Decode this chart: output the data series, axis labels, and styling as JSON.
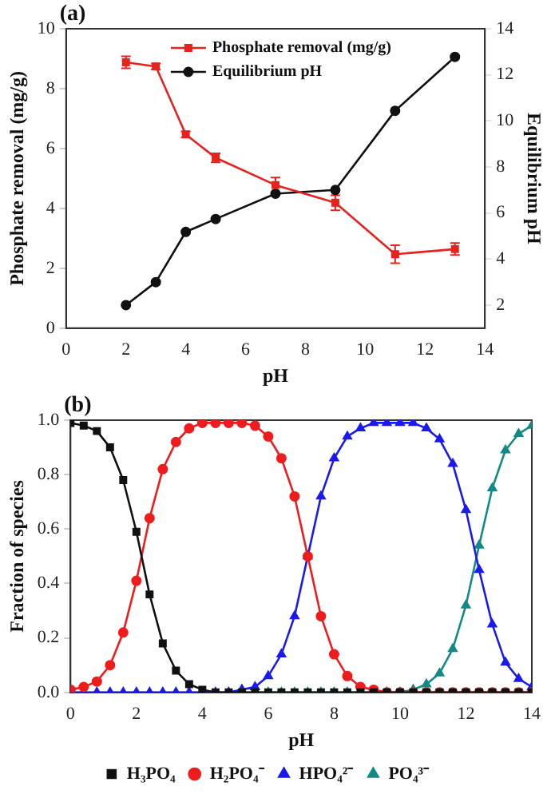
{
  "chart_data": [
    {
      "type": "line",
      "title": "(a)",
      "xlabel": "pH",
      "ylabel": "Phosphate removal (mg/g)",
      "y2label": "Equilibrium pH",
      "xlim": [
        0,
        14
      ],
      "xticks": [
        0,
        2,
        4,
        6,
        8,
        10,
        12,
        14
      ],
      "ylim": [
        0,
        10
      ],
      "yticks": [
        0,
        2,
        4,
        6,
        8,
        10
      ],
      "y2lim": [
        1,
        14
      ],
      "y2ticks": [
        2,
        4,
        6,
        8,
        10,
        12,
        14
      ],
      "grid": false,
      "legend": "top",
      "line_style": "solid",
      "series": [
        {
          "name": "Phosphate removal (mg/g)",
          "color": "#e8211c",
          "marker": "square",
          "x": [
            2,
            3,
            4,
            5,
            7,
            9,
            11,
            13
          ],
          "values": [
            8.88,
            8.74,
            6.47,
            5.69,
            4.78,
            4.19,
            2.47,
            2.64
          ],
          "errors": [
            0.2,
            0.1,
            0.1,
            0.15,
            0.25,
            0.25,
            0.3,
            0.2
          ]
        },
        {
          "name": "Equilibrium pH",
          "color": "#111111",
          "marker": "circle",
          "axis": "y2",
          "x": [
            2,
            3,
            4,
            5,
            7,
            9,
            11,
            13
          ],
          "values": [
            2.0,
            3.0,
            5.18,
            5.74,
            6.84,
            7.0,
            10.44,
            12.78
          ]
        }
      ]
    },
    {
      "type": "line",
      "title": "(b)",
      "xlabel": "pH",
      "ylabel": "Fraction of species",
      "xlim": [
        0,
        14
      ],
      "xticks": [
        0,
        2,
        4,
        6,
        8,
        10,
        12,
        14
      ],
      "ylim": [
        0,
        1
      ],
      "yticks": [
        {
          "value": 0,
          "label": "0.0"
        },
        {
          "value": 0.2,
          "label": "0.2"
        },
        {
          "value": 0.4,
          "label": "0.4"
        },
        {
          "value": 0.6,
          "label": "0.6"
        },
        {
          "value": 0.8,
          "label": "0.8"
        },
        {
          "value": 1,
          "label": "1.0"
        }
      ],
      "grid": false,
      "legend": "bottom",
      "line_style": "solid",
      "x": [
        0,
        0.4,
        0.8,
        1.2,
        1.6,
        2.0,
        2.4,
        2.8,
        3.2,
        3.6,
        4.0,
        4.4,
        4.8,
        5.2,
        5.6,
        6.0,
        6.4,
        6.8,
        7.2,
        7.6,
        8.0,
        8.4,
        8.8,
        9.2,
        9.6,
        10.0,
        10.4,
        10.8,
        11.2,
        11.6,
        12.0,
        12.4,
        12.8,
        13.2,
        13.6,
        14.0
      ],
      "series": [
        {
          "name": "H₃PO₄",
          "color": "#111111",
          "marker": "square",
          "values": [
            0.99,
            0.98,
            0.96,
            0.9,
            0.78,
            0.59,
            0.36,
            0.18,
            0.08,
            0.03,
            0.01,
            0,
            0,
            0,
            0,
            0,
            0,
            0,
            0,
            0,
            0,
            0,
            0,
            0,
            0,
            0,
            0,
            0,
            0,
            0,
            0,
            0,
            0,
            0,
            0,
            0
          ]
        },
        {
          "name": "H₂PO₄⁻",
          "color": "#ee1c1c",
          "marker": "circle",
          "values": [
            0.01,
            0.02,
            0.04,
            0.1,
            0.22,
            0.41,
            0.64,
            0.82,
            0.92,
            0.97,
            0.99,
            0.99,
            0.99,
            0.99,
            0.98,
            0.94,
            0.86,
            0.72,
            0.5,
            0.28,
            0.14,
            0.06,
            0.02,
            0.01,
            0,
            0,
            0,
            0,
            0,
            0,
            0,
            0,
            0,
            0,
            0,
            0
          ]
        },
        {
          "name": "HPO₄²⁻",
          "color": "#1a1aee",
          "marker": "triangle",
          "values": [
            0,
            0,
            0,
            0,
            0,
            0,
            0,
            0,
            0,
            0,
            0,
            0,
            0,
            0.01,
            0.02,
            0.06,
            0.14,
            0.28,
            0.5,
            0.72,
            0.86,
            0.94,
            0.97,
            0.99,
            0.99,
            0.99,
            0.99,
            0.97,
            0.93,
            0.84,
            0.67,
            0.45,
            0.25,
            0.11,
            0.05,
            0.02
          ]
        },
        {
          "name": "PO₄³⁻",
          "color": "#138a87",
          "marker": "triangle",
          "values": [
            null,
            null,
            null,
            null,
            null,
            null,
            null,
            null,
            null,
            null,
            null,
            null,
            null,
            null,
            0,
            0,
            0,
            0,
            0,
            0,
            0,
            0,
            0,
            0,
            0,
            0,
            0.01,
            0.03,
            0.07,
            0.16,
            0.32,
            0.54,
            0.75,
            0.89,
            0.95,
            0.98
          ]
        }
      ]
    }
  ]
}
